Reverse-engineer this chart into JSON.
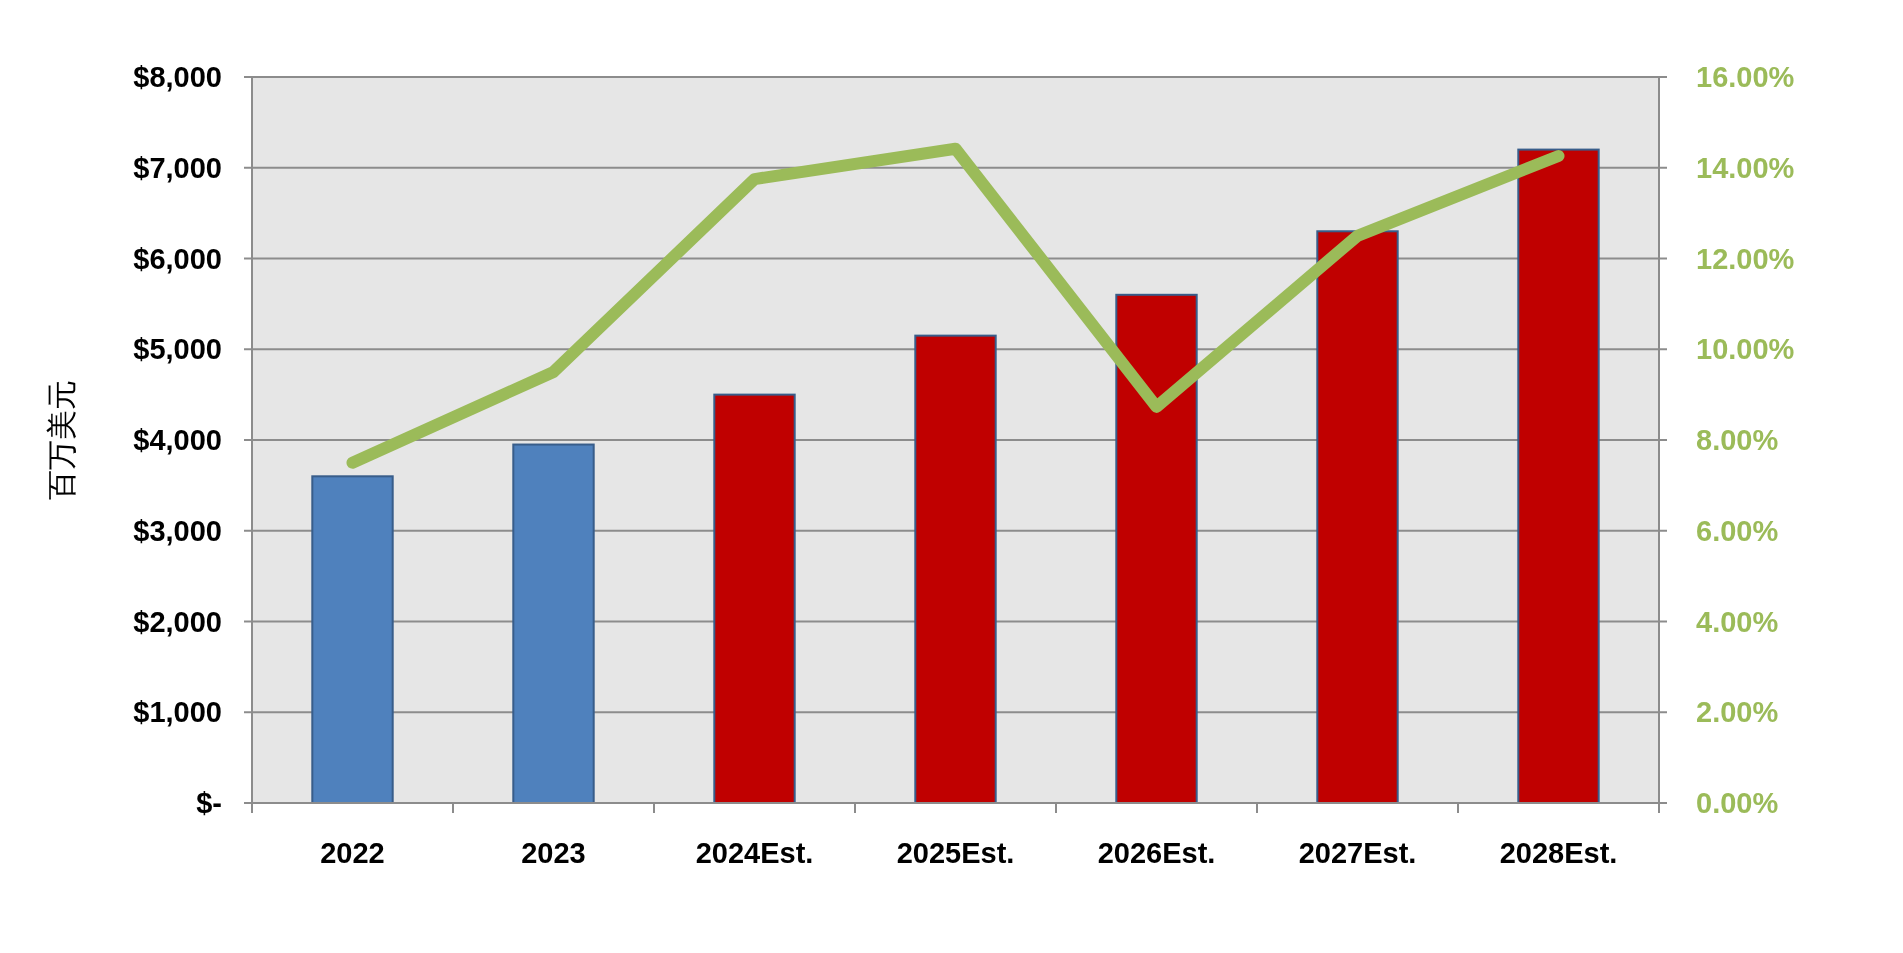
{
  "chart_data": {
    "type": "bar",
    "ylabel": "百万美元",
    "categories": [
      "2022",
      "2023",
      "2024Est.",
      "2025Est.",
      "2026Est.",
      "2027Est.",
      "2028Est."
    ],
    "series": [
      {
        "values": [
          3600,
          3950,
          4500,
          5150,
          5600,
          6300,
          7200
        ],
        "colors": [
          "#4f81bd",
          "#4f81bd",
          "#c00000",
          "#c00000",
          "#c00000",
          "#c00000",
          "#c00000"
        ]
      },
      {
        "type": "line",
        "axis": "y2",
        "color": "#9bbb59",
        "values": [
          7.5,
          9.5,
          13.75,
          14.42,
          8.73,
          12.5,
          14.26
        ]
      }
    ],
    "ylim": [
      0,
      8000
    ],
    "yticks": [
      {
        "value": 0,
        "label": "$-"
      },
      {
        "value": 1000,
        "label": "$1,000"
      },
      {
        "value": 2000,
        "label": "$2,000"
      },
      {
        "value": 3000,
        "label": "$3,000"
      },
      {
        "value": 4000,
        "label": "$4,000"
      },
      {
        "value": 5000,
        "label": "$5,000"
      },
      {
        "value": 6000,
        "label": "$6,000"
      },
      {
        "value": 7000,
        "label": "$7,000"
      },
      {
        "value": 8000,
        "label": "$8,000"
      }
    ],
    "y2lim": [
      0,
      16
    ],
    "y2ticks": [
      {
        "value": 0,
        "label": "0.00%"
      },
      {
        "value": 2,
        "label": "2.00%"
      },
      {
        "value": 4,
        "label": "4.00%"
      },
      {
        "value": 6,
        "label": "6.00%"
      },
      {
        "value": 8,
        "label": "8.00%"
      },
      {
        "value": 10,
        "label": "10.00%"
      },
      {
        "value": 12,
        "label": "12.00%"
      },
      {
        "value": 14,
        "label": "14.00%"
      },
      {
        "value": 16,
        "label": "16.00%"
      }
    ],
    "grid": "y"
  }
}
